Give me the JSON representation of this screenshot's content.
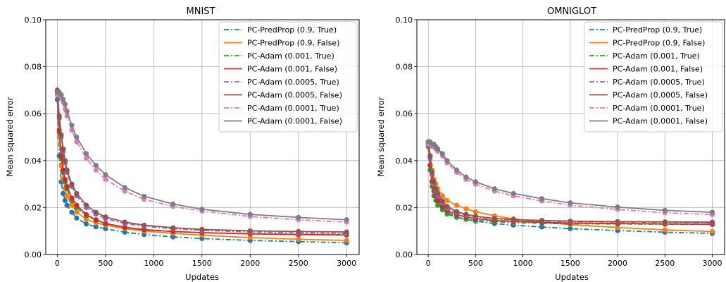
{
  "chart_data": [
    {
      "type": "line",
      "title": "MNIST",
      "xlabel": "Updates",
      "ylabel": "Mean squared error",
      "xlim": [
        -120,
        3130
      ],
      "ylim": [
        0.0,
        0.1
      ],
      "xticks": [
        0,
        500,
        1000,
        1500,
        2000,
        2500,
        3000
      ],
      "xtick_labels": [
        "0",
        "500",
        "1000",
        "1500",
        "2000",
        "2500",
        "3000"
      ],
      "yticks": [
        0.0,
        0.02,
        0.04,
        0.06,
        0.08,
        0.1
      ],
      "ytick_labels": [
        "0.00",
        "0.02",
        "0.04",
        "0.06",
        "0.08",
        "0.10"
      ],
      "grid": true,
      "legend_position": "top-right",
      "series": [
        {
          "name": "PC-PredProp (0.9, True)",
          "color": "#1f77b4",
          "dash": "dashdot",
          "x": [
            0,
            20,
            40,
            60,
            80,
            100,
            150,
            200,
            300,
            400,
            500,
            700,
            900,
            1200,
            1500,
            2000,
            2500,
            3000
          ],
          "y": [
            0.066,
            0.042,
            0.031,
            0.026,
            0.023,
            0.021,
            0.018,
            0.0155,
            0.013,
            0.0118,
            0.011,
            0.0095,
            0.0085,
            0.0075,
            0.0068,
            0.006,
            0.0055,
            0.005
          ]
        },
        {
          "name": "PC-PredProp (0.9, False)",
          "color": "#ff7f0e",
          "dash": "solid",
          "x": [
            0,
            20,
            40,
            60,
            80,
            100,
            150,
            200,
            300,
            400,
            500,
            700,
            900,
            1200,
            1500,
            2000,
            2500,
            3000
          ],
          "y": [
            0.068,
            0.05,
            0.038,
            0.032,
            0.028,
            0.025,
            0.021,
            0.018,
            0.015,
            0.0135,
            0.0125,
            0.011,
            0.01,
            0.009,
            0.0082,
            0.0072,
            0.0065,
            0.006
          ]
        },
        {
          "name": "PC-Adam (0.001, True)",
          "color": "#2ca02c",
          "dash": "dashdot",
          "x": [
            0,
            20,
            40,
            60,
            80,
            100,
            150,
            200,
            300,
            400,
            500,
            700,
            900,
            1200,
            1500,
            2000,
            2500,
            3000
          ],
          "y": [
            0.068,
            0.052,
            0.041,
            0.035,
            0.031,
            0.028,
            0.023,
            0.02,
            0.0165,
            0.0145,
            0.013,
            0.0115,
            0.0105,
            0.0098,
            0.0093,
            0.0088,
            0.0086,
            0.0085
          ]
        },
        {
          "name": "PC-Adam (0.001, False)",
          "color": "#d62728",
          "dash": "solid",
          "x": [
            0,
            20,
            40,
            60,
            80,
            100,
            150,
            200,
            300,
            400,
            500,
            700,
            900,
            1200,
            1500,
            2000,
            2500,
            3000
          ],
          "y": [
            0.069,
            0.053,
            0.042,
            0.036,
            0.032,
            0.029,
            0.024,
            0.021,
            0.017,
            0.0148,
            0.0132,
            0.0116,
            0.0106,
            0.0098,
            0.0093,
            0.0088,
            0.0085,
            0.0083
          ]
        },
        {
          "name": "PC-Adam (0.0005, True)",
          "color": "#9467bd",
          "dash": "dashdot",
          "x": [
            0,
            20,
            40,
            60,
            80,
            100,
            150,
            200,
            300,
            400,
            500,
            700,
            900,
            1200,
            1500,
            2000,
            2500,
            3000
          ],
          "y": [
            0.069,
            0.058,
            0.05,
            0.044,
            0.039,
            0.035,
            0.029,
            0.025,
            0.02,
            0.0172,
            0.0152,
            0.0132,
            0.012,
            0.011,
            0.0103,
            0.0096,
            0.0092,
            0.009
          ]
        },
        {
          "name": "PC-Adam (0.0005, False)",
          "color": "#8c564b",
          "dash": "solid",
          "x": [
            0,
            20,
            40,
            60,
            80,
            100,
            150,
            200,
            300,
            400,
            500,
            700,
            900,
            1200,
            1500,
            2000,
            2500,
            3000
          ],
          "y": [
            0.07,
            0.059,
            0.051,
            0.045,
            0.04,
            0.036,
            0.03,
            0.026,
            0.021,
            0.018,
            0.016,
            0.0138,
            0.0125,
            0.0114,
            0.0107,
            0.0101,
            0.0098,
            0.0096
          ]
        },
        {
          "name": "PC-Adam (0.0001, True)",
          "color": "#e377c2",
          "dash": "dashdot",
          "x": [
            0,
            20,
            40,
            60,
            80,
            100,
            150,
            200,
            300,
            400,
            500,
            700,
            900,
            1200,
            1500,
            2000,
            2500,
            3000
          ],
          "y": [
            0.068,
            0.068,
            0.067,
            0.065,
            0.062,
            0.059,
            0.053,
            0.048,
            0.041,
            0.036,
            0.032,
            0.027,
            0.0235,
            0.0205,
            0.0185,
            0.0162,
            0.0148,
            0.0138
          ]
        },
        {
          "name": "PC-Adam (0.0001, False)",
          "color": "#7f7f7f",
          "dash": "solid",
          "x": [
            0,
            20,
            40,
            60,
            80,
            100,
            150,
            200,
            300,
            400,
            500,
            700,
            900,
            1200,
            1500,
            2000,
            2500,
            3000
          ],
          "y": [
            0.069,
            0.069,
            0.068,
            0.066,
            0.064,
            0.061,
            0.055,
            0.05,
            0.043,
            0.038,
            0.034,
            0.0285,
            0.0248,
            0.0215,
            0.0193,
            0.0171,
            0.0158,
            0.0148
          ]
        }
      ]
    },
    {
      "type": "line",
      "title": "OMNIGLOT",
      "xlabel": "Updates",
      "ylabel": "Mean squared error",
      "xlim": [
        -120,
        3130
      ],
      "ylim": [
        0.0,
        0.1
      ],
      "xticks": [
        0,
        500,
        1000,
        1500,
        2000,
        2500,
        3000
      ],
      "xtick_labels": [
        "0",
        "500",
        "1000",
        "1500",
        "2000",
        "2500",
        "3000"
      ],
      "yticks": [
        0.0,
        0.02,
        0.04,
        0.06,
        0.08,
        0.1
      ],
      "ytick_labels": [
        "0.00",
        "0.02",
        "0.04",
        "0.06",
        "0.08",
        "0.10"
      ],
      "grid": true,
      "legend_position": "top-right",
      "series": [
        {
          "name": "PC-PredProp (0.9, True)",
          "color": "#1f77b4",
          "dash": "dashdot",
          "x": [
            0,
            20,
            40,
            60,
            80,
            100,
            150,
            200,
            300,
            400,
            500,
            700,
            900,
            1200,
            1500,
            2000,
            2500,
            3000
          ],
          "y": [
            0.047,
            0.038,
            0.031,
            0.027,
            0.025,
            0.023,
            0.02,
            0.018,
            0.016,
            0.015,
            0.0142,
            0.0132,
            0.0125,
            0.0117,
            0.011,
            0.0102,
            0.0095,
            0.009
          ]
        },
        {
          "name": "PC-PredProp (0.9, False)",
          "color": "#ff7f0e",
          "dash": "solid",
          "x": [
            0,
            20,
            40,
            60,
            80,
            100,
            150,
            200,
            300,
            400,
            500,
            700,
            900,
            1200,
            1500,
            2000,
            2500,
            3000
          ],
          "y": [
            0.047,
            0.042,
            0.036,
            0.032,
            0.03,
            0.028,
            0.025,
            0.023,
            0.021,
            0.0195,
            0.0182,
            0.0165,
            0.0152,
            0.0138,
            0.0127,
            0.0115,
            0.0105,
            0.0098
          ]
        },
        {
          "name": "PC-Adam (0.001, True)",
          "color": "#2ca02c",
          "dash": "dashdot",
          "x": [
            0,
            20,
            40,
            60,
            80,
            100,
            150,
            200,
            300,
            400,
            500,
            700,
            900,
            1200,
            1500,
            2000,
            2500,
            3000
          ],
          "y": [
            0.046,
            0.036,
            0.029,
            0.025,
            0.023,
            0.021,
            0.019,
            0.0172,
            0.0158,
            0.015,
            0.0145,
            0.014,
            0.0136,
            0.0133,
            0.0131,
            0.013,
            0.0129,
            0.0128
          ]
        },
        {
          "name": "PC-Adam (0.001, False)",
          "color": "#d62728",
          "dash": "solid",
          "x": [
            0,
            20,
            40,
            60,
            80,
            100,
            150,
            200,
            300,
            400,
            500,
            700,
            900,
            1200,
            1500,
            2000,
            2500,
            3000
          ],
          "y": [
            0.047,
            0.038,
            0.031,
            0.027,
            0.025,
            0.023,
            0.0205,
            0.0187,
            0.017,
            0.016,
            0.0153,
            0.0145,
            0.0141,
            0.0137,
            0.0134,
            0.0132,
            0.013,
            0.0129
          ]
        },
        {
          "name": "PC-Adam (0.0005, True)",
          "color": "#9467bd",
          "dash": "dashdot",
          "x": [
            0,
            20,
            40,
            60,
            80,
            100,
            150,
            200,
            300,
            400,
            500,
            700,
            900,
            1200,
            1500,
            2000,
            2500,
            3000
          ],
          "y": [
            0.047,
            0.041,
            0.034,
            0.03,
            0.027,
            0.025,
            0.022,
            0.0198,
            0.0178,
            0.0167,
            0.016,
            0.0152,
            0.0147,
            0.0143,
            0.014,
            0.0138,
            0.0137,
            0.0136
          ]
        },
        {
          "name": "PC-Adam (0.0005, False)",
          "color": "#8c564b",
          "dash": "solid",
          "x": [
            0,
            20,
            40,
            60,
            80,
            100,
            150,
            200,
            300,
            400,
            500,
            700,
            900,
            1200,
            1500,
            2000,
            2500,
            3000
          ],
          "y": [
            0.048,
            0.042,
            0.035,
            0.031,
            0.028,
            0.026,
            0.0228,
            0.0205,
            0.0183,
            0.0171,
            0.0163,
            0.0154,
            0.0149,
            0.0145,
            0.0142,
            0.014,
            0.0139,
            0.0138
          ]
        },
        {
          "name": "PC-Adam (0.0001, True)",
          "color": "#e377c2",
          "dash": "dashdot",
          "x": [
            0,
            20,
            40,
            60,
            80,
            100,
            150,
            200,
            300,
            400,
            500,
            700,
            900,
            1200,
            1500,
            2000,
            2500,
            3000
          ],
          "y": [
            0.047,
            0.047,
            0.046,
            0.046,
            0.045,
            0.044,
            0.042,
            0.039,
            0.035,
            0.032,
            0.03,
            0.027,
            0.025,
            0.0228,
            0.021,
            0.0192,
            0.0178,
            0.017
          ]
        },
        {
          "name": "PC-Adam (0.0001, False)",
          "color": "#7f7f7f",
          "dash": "solid",
          "x": [
            0,
            20,
            40,
            60,
            80,
            100,
            150,
            200,
            300,
            400,
            500,
            700,
            900,
            1200,
            1500,
            2000,
            2500,
            3000
          ],
          "y": [
            0.048,
            0.048,
            0.047,
            0.047,
            0.046,
            0.045,
            0.043,
            0.04,
            0.036,
            0.033,
            0.031,
            0.028,
            0.026,
            0.0238,
            0.022,
            0.0202,
            0.0188,
            0.018
          ]
        }
      ]
    }
  ]
}
